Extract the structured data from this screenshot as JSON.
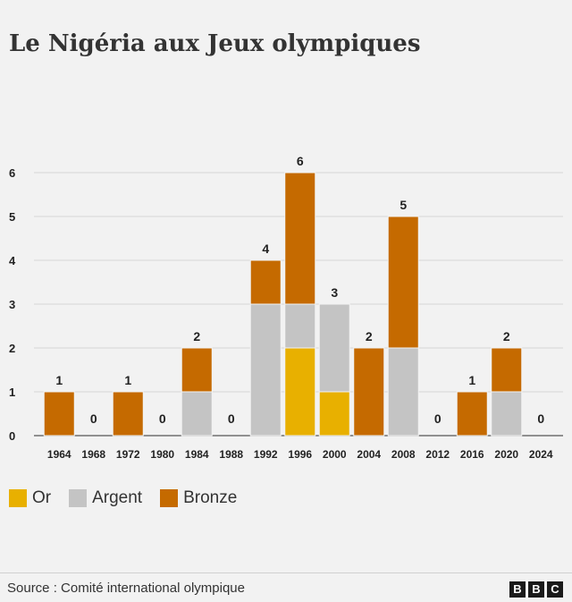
{
  "title": "Le Nigéria aux Jeux olympiques",
  "source": "Source : Comité international olympique",
  "logo_letters": [
    "B",
    "B",
    "C"
  ],
  "colors": {
    "or": "#e8b000",
    "argent": "#c4c4c4",
    "bronze": "#c56a00"
  },
  "legend": [
    {
      "label": "Or",
      "color": "#e8b000"
    },
    {
      "label": "Argent",
      "color": "#c4c4c4"
    },
    {
      "label": "Bronze",
      "color": "#c56a00"
    }
  ],
  "chart_data": {
    "type": "bar",
    "stacked": true,
    "title": "Le Nigéria aux Jeux olympiques",
    "categories": [
      "1964",
      "1968",
      "1972",
      "1980",
      "1984",
      "1988",
      "1992",
      "1996",
      "2000",
      "2004",
      "2008",
      "2012",
      "2016",
      "2020",
      "2024"
    ],
    "series": [
      {
        "name": "Or",
        "color": "#e8b000",
        "values": [
          0,
          0,
          0,
          0,
          0,
          0,
          0,
          2,
          1,
          0,
          0,
          0,
          0,
          0,
          0
        ]
      },
      {
        "name": "Argent",
        "color": "#c4c4c4",
        "values": [
          0,
          0,
          0,
          0,
          1,
          0,
          3,
          1,
          2,
          0,
          2,
          0,
          0,
          1,
          0
        ]
      },
      {
        "name": "Bronze",
        "color": "#c56a00",
        "values": [
          1,
          0,
          1,
          0,
          1,
          0,
          1,
          3,
          0,
          2,
          3,
          0,
          1,
          1,
          0
        ]
      }
    ],
    "totals": [
      1,
      0,
      1,
      0,
      2,
      0,
      4,
      6,
      3,
      2,
      5,
      0,
      1,
      2,
      0
    ],
    "yticks": [
      0,
      1,
      2,
      3,
      4,
      5,
      6
    ],
    "ylim": [
      0,
      6
    ],
    "grid": true,
    "legend_position": "bottom-left"
  }
}
